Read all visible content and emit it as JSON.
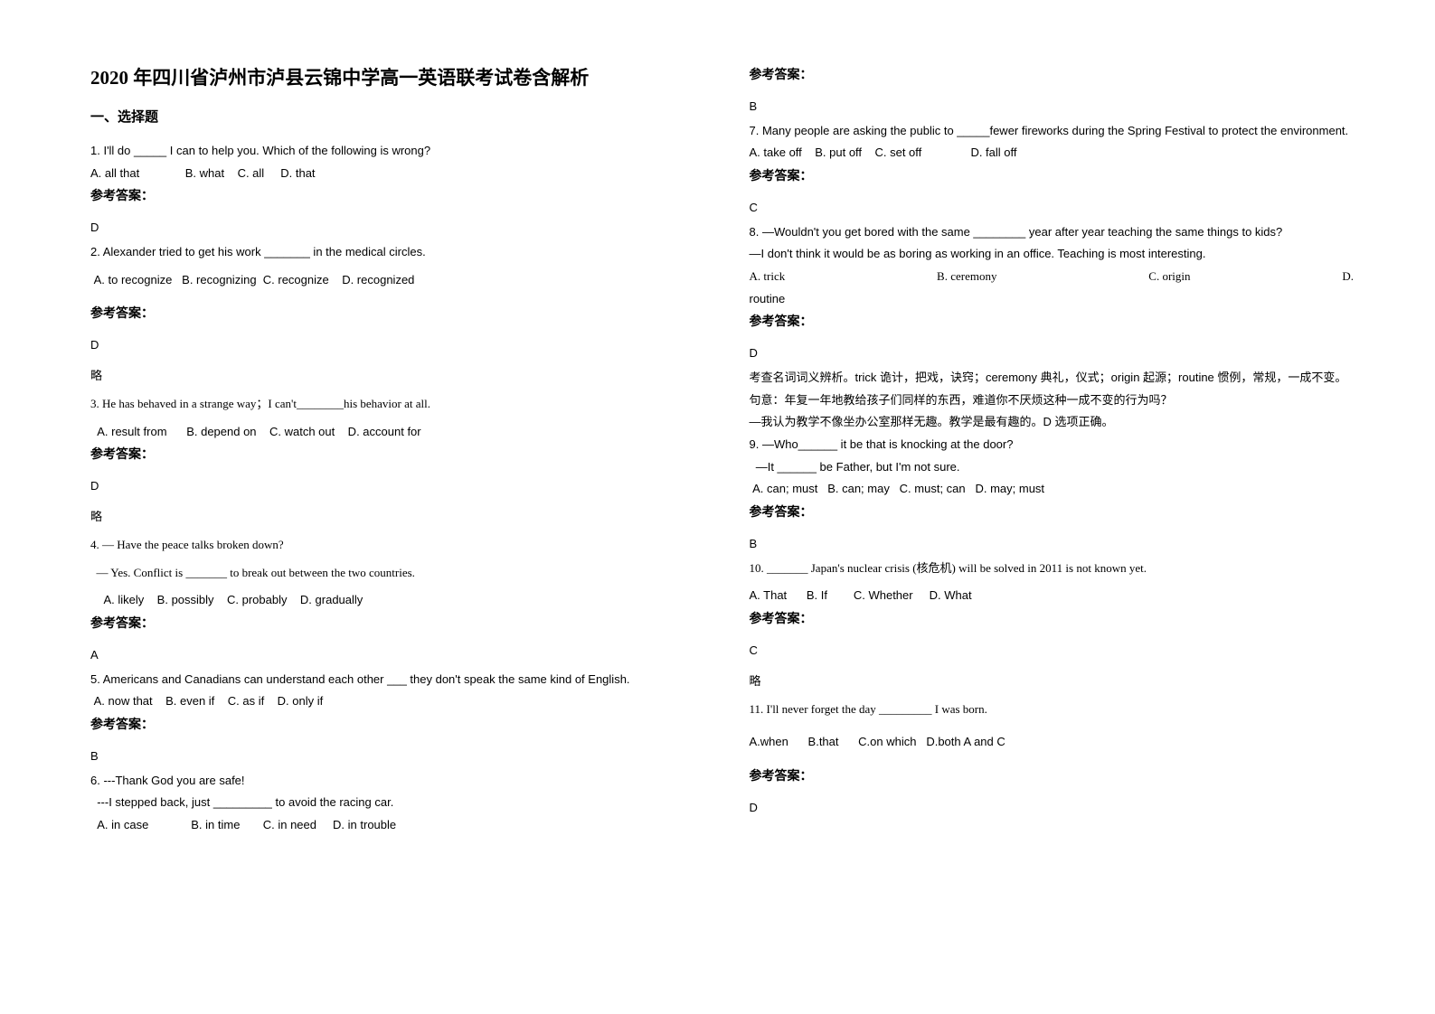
{
  "title": "2020 年四川省泸州市泸县云锦中学高一英语联考试卷含解析",
  "section1": "一、选择题",
  "answer_label": "参考答案：",
  "lue": "略",
  "left": {
    "q1": {
      "stem": "1. I'll do _____ I can to help you. Which of the following is wrong?",
      "opts": "A. all that              B. what    C. all     D. that",
      "ans": "D"
    },
    "q2": {
      "stem": "2. Alexander tried to get his work _______ in the medical circles.",
      "opts": " A. to recognize   B. recognizing  C. recognize    D. recognized",
      "ans": "D"
    },
    "q3": {
      "stem": "3. He has behaved in a strange way；I can't________his behavior at all.",
      "opts": "  A. result from      B. depend on    C. watch out    D. account for",
      "ans": "D"
    },
    "q4": {
      "stem1": "4.  — Have the peace talks broken down?",
      "stem2": "  — Yes. Conflict is _______ to break out between the two countries.",
      "opts": "    A. likely    B. possibly    C. probably    D. gradually",
      "ans": "A"
    },
    "q5": {
      "stem": "5. Americans and Canadians can understand each other ___ they don't speak the same kind of English.",
      "opts": " A. now that    B. even if    C. as if    D. only if",
      "ans": "B"
    },
    "q6": {
      "stem1": "6. ---Thank God you are safe!",
      "stem2": "  ---I stepped back, just _________ to avoid the racing car.",
      "opts": "  A. in case             B. in time       C. in need     D. in trouble"
    }
  },
  "right": {
    "q6_ans": "B",
    "q7": {
      "stem": "7. Many people are asking the public to _____fewer fireworks during the Spring Festival to protect the environment.",
      "opts": "A. take off    B. put off    C. set off               D. fall off",
      "ans": "C"
    },
    "q8": {
      "stem1": "8. —Wouldn't you get bored with the same ________ year after year teaching the same things to kids?",
      "stem2": "—I don't think it would be as boring as working in an office. Teaching is most interesting.",
      "optA": "A. trick",
      "optB": "B. ceremony",
      "optC": "C. origin",
      "optD": "D.",
      "cont": "routine",
      "ans": "D",
      "expl1": "考查名词词义辨析。trick 诡计，把戏，诀窍；ceremony 典礼，仪式；origin 起源；routine 惯例，常规，一成不变。句意：年复一年地教给孩子们同样的东西，难道你不厌烦这种一成不变的行为吗？",
      "expl2": "—我认为教学不像坐办公室那样无趣。教学是最有趣的。D 选项正确。"
    },
    "q9": {
      "stem1": "9. —Who______ it be that is knocking at the door?",
      "stem2": "  —It ______ be Father, but I'm not sure.",
      "opts": " A. can; must   B. can; may   C. must; can   D. may; must",
      "ans": "B"
    },
    "q10": {
      "stem": "10. _______ Japan's nuclear crisis (核危机) will be solved in 2011 is not known yet.",
      "opts": "A. That      B. If        C. Whether     D. What",
      "ans": "C"
    },
    "q11": {
      "stem": "11. I'll never forget the day _________ I was born.",
      "opts": "A.when      B.that      C.on which   D.both A and C",
      "ans": "D"
    }
  }
}
